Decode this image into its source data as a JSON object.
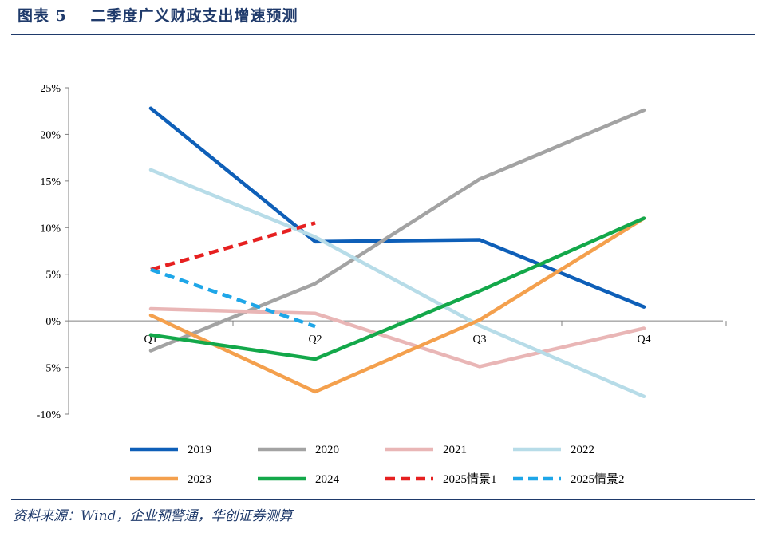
{
  "header": {
    "figure_label": "图表",
    "figure_number": "5",
    "title": "二季度广义财政支出增速预测"
  },
  "source_note": "资料来源：Wind，企业预警通，华创证券测算",
  "colors": {
    "header_blue": "#1f3a6b",
    "axis": "#808080"
  },
  "chart_data": {
    "type": "line",
    "categories": [
      "Q1",
      "Q2",
      "Q3",
      "Q4"
    ],
    "y_ticks": [
      "25%",
      "20%",
      "15%",
      "10%",
      "5%",
      "0%",
      "-5%",
      "-10%"
    ],
    "ylim": [
      -10,
      25
    ],
    "y_unit": "%",
    "grid": false,
    "legend_position": "bottom",
    "series": [
      {
        "name": "2019",
        "values": [
          22.8,
          8.5,
          8.7,
          1.5
        ],
        "color": "#0e5fb8",
        "dash": false
      },
      {
        "name": "2020",
        "values": [
          -3.2,
          4.0,
          15.2,
          22.6
        ],
        "color": "#a3a3a3",
        "dash": false
      },
      {
        "name": "2021",
        "values": [
          1.3,
          0.8,
          -4.9,
          -0.8
        ],
        "color": "#e9b6b6",
        "dash": false
      },
      {
        "name": "2022",
        "values": [
          16.2,
          9.0,
          -0.5,
          -8.1
        ],
        "color": "#b7dce8",
        "dash": false
      },
      {
        "name": "2023",
        "values": [
          0.6,
          -7.6,
          0.1,
          11.0
        ],
        "color": "#f4a04d",
        "dash": false
      },
      {
        "name": "2024",
        "values": [
          -1.5,
          -4.1,
          3.2,
          11.0
        ],
        "color": "#13a84a",
        "dash": false
      },
      {
        "name": "2025情景1",
        "values": [
          5.5,
          10.5,
          null,
          null
        ],
        "color": "#e62020",
        "dash": true
      },
      {
        "name": "2025情景2",
        "values": [
          5.5,
          -0.6,
          null,
          null
        ],
        "color": "#1ea6e8",
        "dash": true
      }
    ]
  }
}
